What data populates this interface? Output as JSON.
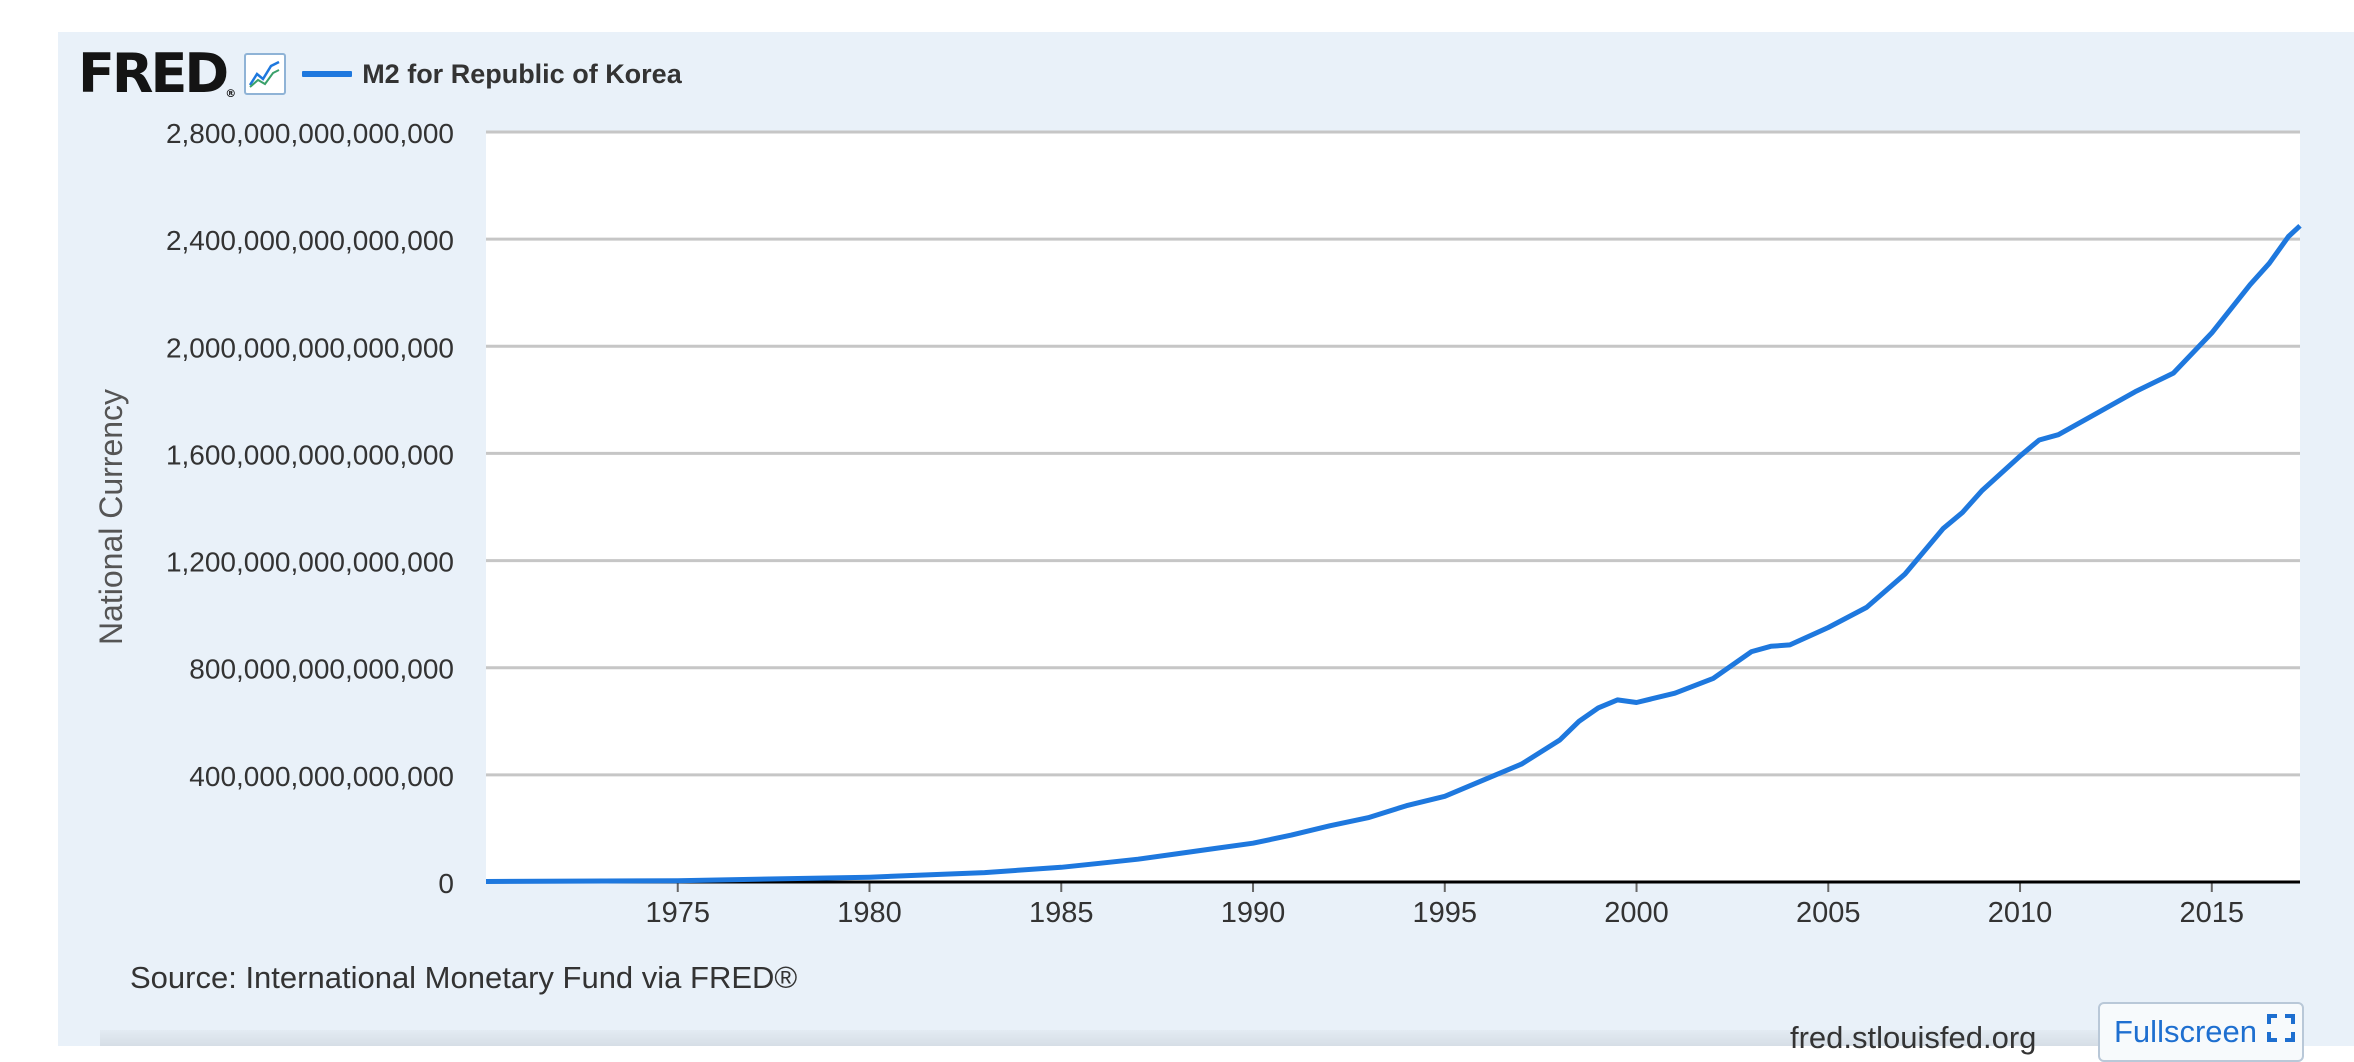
{
  "header": {
    "logo": "FRED",
    "logo_mark": "®",
    "logo_icon": "line-chart-icon",
    "legend_label": "M2 for Republic of Korea"
  },
  "footer": {
    "source": "Source: International Monetary Fund via FRED®",
    "site": "fred.stlouisfed.org",
    "fullscreen_label": "Fullscreen",
    "fullscreen_icon": "expand-icon"
  },
  "colors": {
    "series": "#1e78de",
    "panel": "#e9f1f9",
    "grid": "#c6c6c6",
    "text": "#333333"
  },
  "chart_data": {
    "type": "line",
    "title": "",
    "xlabel": "",
    "ylabel": "National Currency",
    "xlim": [
      1970,
      2017.3
    ],
    "ylim": [
      0,
      2800000000000000
    ],
    "grid": true,
    "legend": "top-left",
    "x_ticks": [
      1975,
      1980,
      1985,
      1990,
      1995,
      2000,
      2005,
      2010,
      2015
    ],
    "y_ticks": [
      {
        "value": 0,
        "label": "0"
      },
      {
        "value": 400000000000000,
        "label": "400,000,000,000,000"
      },
      {
        "value": 800000000000000,
        "label": "800,000,000,000,000"
      },
      {
        "value": 1200000000000000,
        "label": "1,200,000,000,000,000"
      },
      {
        "value": 1600000000000000,
        "label": "1,600,000,000,000,000"
      },
      {
        "value": 2000000000000000,
        "label": "2,000,000,000,000,000"
      },
      {
        "value": 2400000000000000,
        "label": "2,400,000,000,000,000"
      },
      {
        "value": 2800000000000000,
        "label": "2,800,000,000,000,000"
      }
    ],
    "series": [
      {
        "name": "M2 for Republic of Korea",
        "x": [
          1970,
          1975,
          1980,
          1983,
          1985,
          1986,
          1987,
          1988,
          1989,
          1990,
          1991,
          1992,
          1993,
          1994,
          1995,
          1996,
          1997,
          1998,
          1998.5,
          1999,
          1999.5,
          2000,
          2001,
          2002,
          2003,
          2003.5,
          2004,
          2005,
          2006,
          2007,
          2008,
          2008.5,
          2009,
          2010,
          2010.5,
          2011,
          2012,
          2013,
          2014,
          2015,
          2016,
          2016.5,
          2017,
          2017.3
        ],
        "y": [
          2000000000000,
          5000000000000,
          18000000000000,
          35000000000000,
          55000000000000,
          70000000000000,
          85000000000000,
          105000000000000,
          125000000000000,
          145000000000000,
          175000000000000,
          210000000000000,
          240000000000000,
          285000000000000,
          320000000000000,
          380000000000000,
          440000000000000,
          530000000000000,
          600000000000000,
          650000000000000,
          680000000000000,
          670000000000000,
          705000000000000,
          760000000000000,
          860000000000000,
          880000000000000,
          885000000000000,
          950000000000000,
          1025000000000000,
          1150000000000000,
          1320000000000000,
          1380000000000000,
          1460000000000000,
          1590000000000000,
          1650000000000000,
          1670000000000000,
          1750000000000000,
          1830000000000000,
          1900000000000000,
          2050000000000000,
          2230000000000000,
          2310000000000000,
          2410000000000000,
          2450000000000000
        ]
      }
    ]
  }
}
